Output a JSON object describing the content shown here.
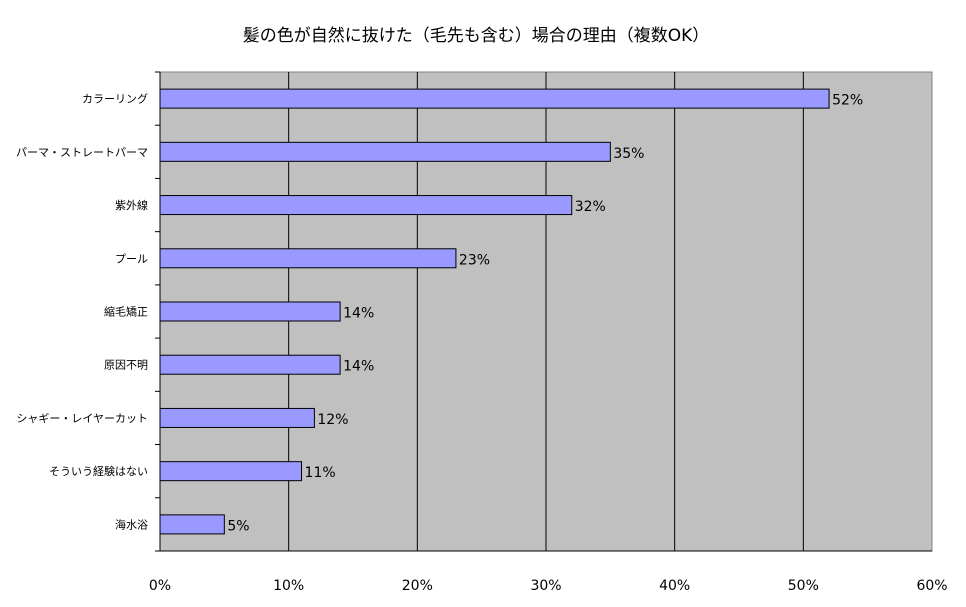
{
  "chart_data": {
    "type": "bar",
    "orientation": "horizontal",
    "title": "髪の色が自然に抜けた（毛先も含む）場合の理由（複数OK）",
    "categories": [
      "カラーリング",
      "パーマ・ストレートパーマ",
      "紫外線",
      "プール",
      "縮毛矯正",
      "原因不明",
      "シャギー・レイヤーカット",
      "そういう経験はない",
      "海水浴"
    ],
    "values": [
      52,
      35,
      32,
      23,
      14,
      14,
      12,
      11,
      5
    ],
    "data_labels": [
      "52%",
      "35%",
      "32%",
      "23%",
      "14%",
      "14%",
      "12%",
      "11%",
      "5%"
    ],
    "x_ticks": [
      "0%",
      "10%",
      "20%",
      "30%",
      "40%",
      "50%",
      "60%"
    ],
    "xlim": [
      0,
      60
    ],
    "xlabel": "",
    "ylabel": "",
    "grid": true,
    "legend": "none",
    "colors": {
      "bar_fill": "#9999ff",
      "bar_stroke": "#000000",
      "plot_background": "#c0c0c0",
      "gridline": "#000000"
    }
  }
}
